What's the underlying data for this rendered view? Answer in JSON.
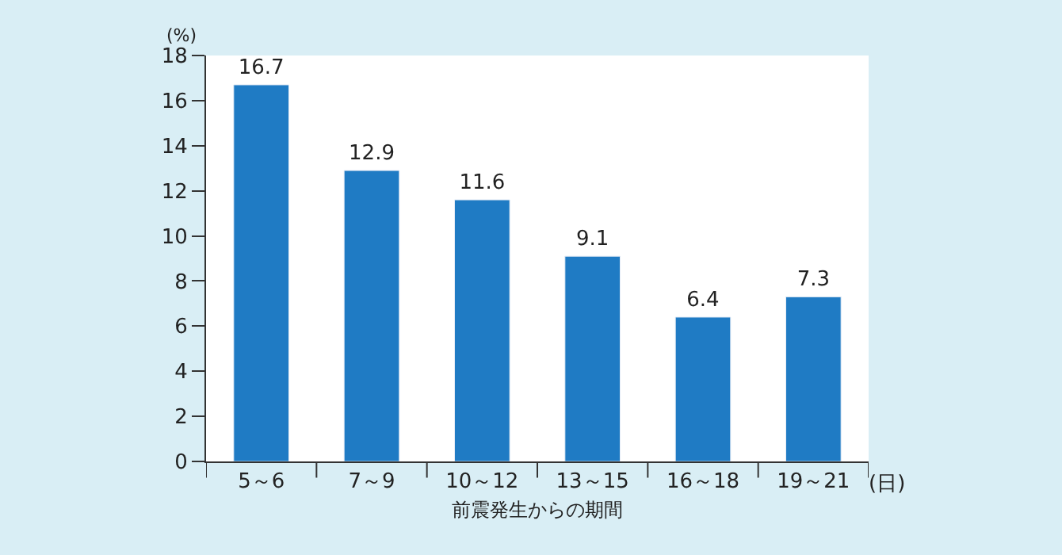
{
  "chart_data": {
    "type": "bar",
    "categories": [
      "5～6",
      "7～9",
      "10～12",
      "13～15",
      "16～18",
      "19～21"
    ],
    "values": [
      16.7,
      12.9,
      11.6,
      9.1,
      6.4,
      7.3
    ],
    "color": "#1f7bc4",
    "ylim": [
      0,
      18
    ],
    "yticks": [
      0,
      2,
      4,
      6,
      8,
      10,
      12,
      14,
      16,
      18
    ],
    "ylabel": "(%)",
    "xlabel": "前震発生からの期間",
    "annotations": [
      "(日)"
    ],
    "data_labels": true
  }
}
